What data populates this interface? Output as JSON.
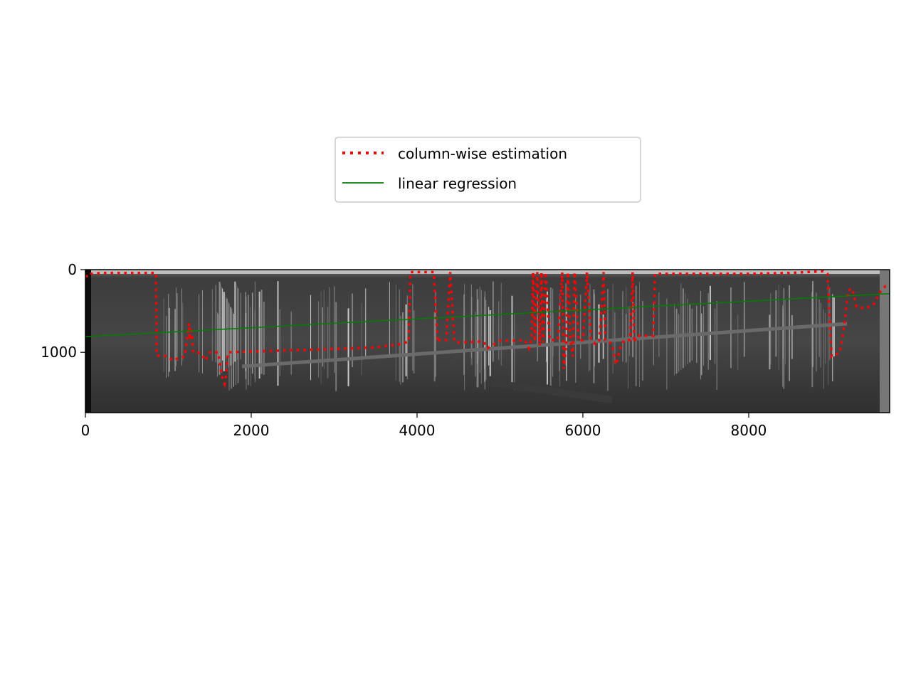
{
  "chart_data": {
    "type": "line",
    "title": "",
    "xlabel": "",
    "ylabel": "",
    "xlim": [
      0,
      9700
    ],
    "ylim": [
      1730,
      0
    ],
    "y_inverted": true,
    "background": "grayscale image (scratched metal strip with vertical bright streaks)",
    "x_ticks": [
      0,
      2000,
      4000,
      6000,
      8000
    ],
    "y_ticks": [
      0,
      1000
    ],
    "legend": {
      "placement": "top-center",
      "entries": [
        {
          "label": "column-wise estimation",
          "color": "#ff0000",
          "style": "dotted"
        },
        {
          "label": "linear regression",
          "color": "#008000",
          "style": "solid"
        }
      ]
    },
    "series": [
      {
        "name": "column-wise estimation",
        "color": "#ff0000",
        "style": "dotted",
        "x": [
          0,
          60,
          70,
          200,
          350,
          600,
          850,
          860,
          1000,
          1050,
          1150,
          1200,
          1210,
          1250,
          1260,
          1280,
          1300,
          1350,
          1400,
          1450,
          1500,
          1600,
          1650,
          1680,
          1700,
          1720,
          2000,
          3000,
          3500,
          3800,
          3900,
          3920,
          4000,
          4200,
          4250,
          4270,
          4350,
          4400,
          4450,
          4460,
          4500,
          4800,
          4850,
          5000,
          5200,
          5300,
          5350,
          5380,
          5400,
          5420,
          5450,
          5480,
          5500,
          5520,
          5550,
          5600,
          5700,
          5750,
          5770,
          5800,
          5820,
          5850,
          5880,
          5900,
          5950,
          6000,
          6050,
          6100,
          6150,
          6200,
          6250,
          6270,
          6300,
          6320,
          6350,
          6400,
          6450,
          6500,
          6550,
          6570,
          6600,
          6620,
          6650,
          6700,
          6800,
          6850,
          6870,
          7000,
          7500,
          8000,
          8500,
          8900,
          8950,
          9000,
          9050,
          9100,
          9150,
          9200,
          9250,
          9300,
          9400,
          9500,
          9600,
          9650,
          9700
        ],
        "y": [
          80,
          80,
          50,
          40,
          40,
          40,
          40,
          1040,
          1050,
          1100,
          1060,
          1050,
          950,
          650,
          850,
          700,
          1000,
          1000,
          1020,
          1100,
          1000,
          1000,
          1300,
          1380,
          1260,
          1000,
          990,
          960,
          940,
          900,
          870,
          30,
          30,
          30,
          880,
          850,
          850,
          30,
          850,
          880,
          880,
          870,
          950,
          860,
          860,
          850,
          950,
          850,
          30,
          870,
          30,
          920,
          30,
          880,
          30,
          850,
          850,
          30,
          1200,
          880,
          30,
          850,
          1050,
          30,
          860,
          850,
          30,
          850,
          900,
          850,
          30,
          850,
          880,
          880,
          900,
          1150,
          950,
          850,
          850,
          850,
          30,
          880,
          800,
          800,
          800,
          800,
          50,
          50,
          50,
          50,
          40,
          20,
          50,
          1050,
          1030,
          1000,
          700,
          250,
          230,
          450,
          470,
          430,
          250,
          200,
          200
        ]
      },
      {
        "name": "linear regression",
        "color": "#008000",
        "style": "solid",
        "x": [
          0,
          9700
        ],
        "y": [
          810,
          290
        ]
      }
    ]
  }
}
